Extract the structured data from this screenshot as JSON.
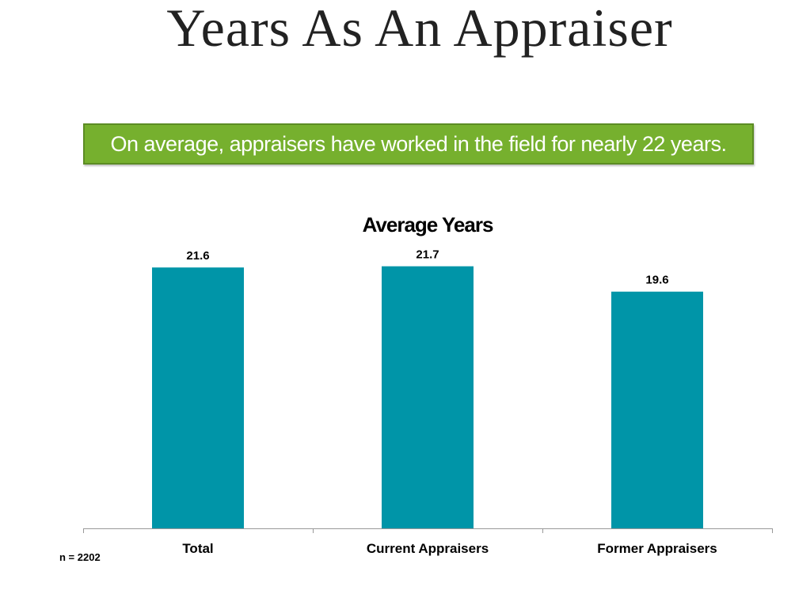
{
  "slide_title": "Years As An Appraiser",
  "callout": "On average, appraisers have worked in the field for nearly 22 years.",
  "footnote": "n = 2202",
  "colors": {
    "bar": "#0095a8",
    "callout": "#76b02e",
    "axis": "#999999"
  },
  "chart_data": {
    "type": "bar",
    "title": "Average Years",
    "categories": [
      "Total",
      "Current Appraisers",
      "Former Appraisers"
    ],
    "values": [
      21.6,
      21.7,
      19.6
    ],
    "data_labels": [
      "21.6",
      "21.7",
      "19.6"
    ],
    "xlabel": "",
    "ylabel": "",
    "ylim": [
      0,
      26
    ],
    "grid": false,
    "legend": "none"
  }
}
